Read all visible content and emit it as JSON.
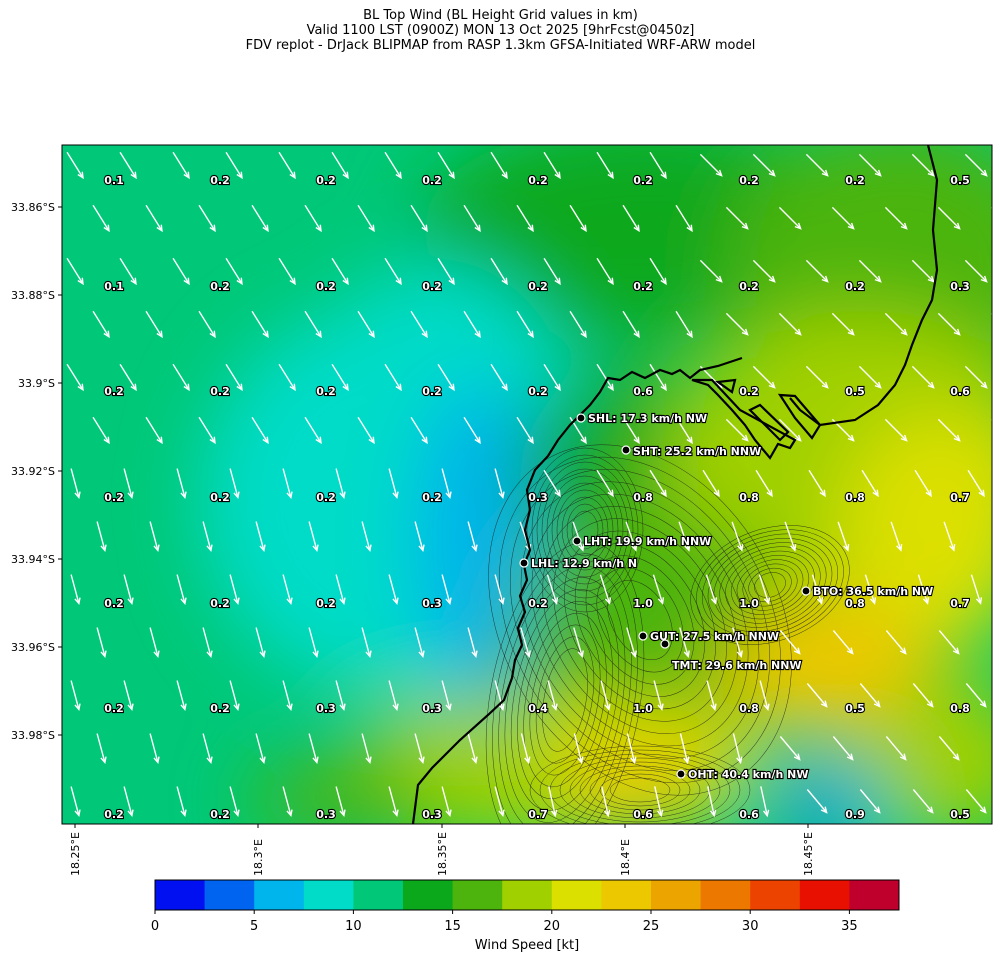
{
  "title": {
    "line1": "BL Top Wind (BL Height Grid values in km)",
    "line2": "Valid 1100 LST (0900Z) MON 13 Oct 2025 [9hrFcst@0450z]",
    "line3": "FDV replot - DrJack BLIPMAP from RASP 1.3km GFSA-Initiated WRF-ARW model"
  },
  "map": {
    "lat_range": [
      -34.0,
      -33.845
    ],
    "lon_range": [
      18.25,
      18.5
    ],
    "lat_ticks": [
      "33.86°S",
      "33.88°S",
      "33.9°S",
      "33.92°S",
      "33.94°S",
      "33.96°S",
      "33.98°S"
    ],
    "lon_ticks": [
      "18.25°E",
      "18.3°E",
      "18.35°E",
      "18.4°E",
      "18.45°E"
    ],
    "bl_height_grid_km": [
      [
        "0.1",
        "0.2",
        "0.2",
        "0.2",
        "0.2",
        "0.2",
        "0.2",
        "0.2",
        "0.5"
      ],
      [
        "0.1",
        "0.2",
        "0.2",
        "0.2",
        "0.2",
        "0.2",
        "0.2",
        "0.2",
        "0.3"
      ],
      [
        "0.2",
        "0.2",
        "0.2",
        "0.2",
        "0.2",
        "0.6",
        "0.2",
        "0.5",
        "0.6"
      ],
      [
        "0.2",
        "0.2",
        "0.2",
        "0.2",
        "0.3",
        "0.8",
        "0.8",
        "0.8",
        "0.7"
      ],
      [
        "0.2",
        "0.2",
        "0.2",
        "0.3",
        "0.2",
        "1.0",
        "1.0",
        "0.8",
        "0.7"
      ],
      [
        "0.2",
        "0.2",
        "0.3",
        "0.3",
        "0.4",
        "1.0",
        "0.8",
        "0.5",
        "0.8"
      ],
      [
        "0.2",
        "0.2",
        "0.3",
        "0.3",
        "0.7",
        "0.6",
        "0.6",
        "0.9",
        "0.5"
      ]
    ],
    "stations": [
      {
        "label": "SHL: 17.3 km/h NW"
      },
      {
        "label": "SHT: 25.2 km/h NNW"
      },
      {
        "label": "LHT: 19.9 km/h NNW"
      },
      {
        "label": "LHL: 12.9 km/h N"
      },
      {
        "label": "BTO: 36.5 km/h NW"
      },
      {
        "label": "GUT: 27.5 km/h NNW"
      },
      {
        "label": "TMT: 29.6 km/h NNW"
      },
      {
        "label": "OHT: 40.4 km/h NW"
      }
    ]
  },
  "colorbar": {
    "label": "Wind Speed [kt]",
    "min": 0,
    "max": 37.5,
    "tick_labels": [
      "0",
      "5",
      "10",
      "15",
      "20",
      "25",
      "30",
      "35"
    ],
    "colors": [
      "#0010f0",
      "#0064f0",
      "#00b4ec",
      "#00dcc8",
      "#00c878",
      "#0ca81c",
      "#4cb40c",
      "#a0d000",
      "#dce000",
      "#ecc800",
      "#eca400",
      "#ec7800",
      "#ec4400",
      "#e81000",
      "#c0002c"
    ]
  }
}
